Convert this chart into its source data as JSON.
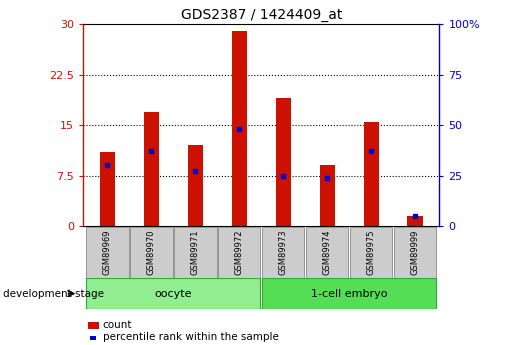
{
  "title": "GDS2387 / 1424409_at",
  "samples": [
    "GSM89969",
    "GSM89970",
    "GSM89971",
    "GSM89972",
    "GSM89973",
    "GSM89974",
    "GSM89975",
    "GSM89999"
  ],
  "counts": [
    11.0,
    17.0,
    12.0,
    29.0,
    19.0,
    9.0,
    15.5,
    1.5
  ],
  "percentiles": [
    30,
    37,
    27,
    48,
    25,
    24,
    37,
    5
  ],
  "bar_color": "#cc1100",
  "marker_color": "#0000cc",
  "left_ylim": [
    0,
    30
  ],
  "right_ylim": [
    0,
    100
  ],
  "left_yticks": [
    0,
    7.5,
    15,
    22.5,
    30
  ],
  "right_yticks": [
    0,
    25,
    50,
    75,
    100
  ],
  "left_yticklabels": [
    "0",
    "7.5",
    "15",
    "22.5",
    "30"
  ],
  "right_yticklabels": [
    "0",
    "25",
    "50",
    "75",
    "100%"
  ],
  "groups": [
    {
      "label": "oocyte",
      "start": 0,
      "end": 3,
      "color": "#90ee90"
    },
    {
      "label": "1-cell embryo",
      "start": 4,
      "end": 7,
      "color": "#55dd55"
    }
  ],
  "dev_stage_label": "development stage",
  "legend_count_label": "count",
  "legend_percentile_label": "percentile rank within the sample",
  "sample_box_color": "#cccccc",
  "grid_yticks": [
    7.5,
    15,
    22.5
  ],
  "bar_width": 0.35
}
